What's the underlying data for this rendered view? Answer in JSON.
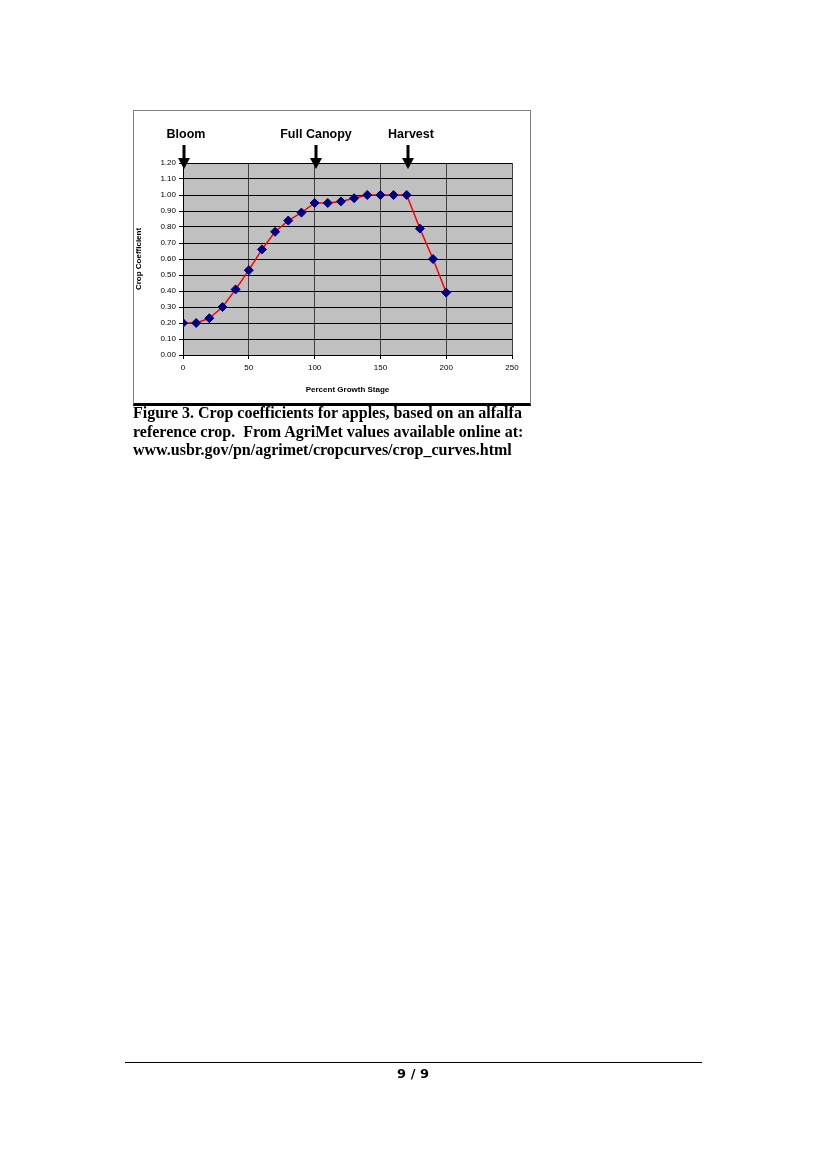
{
  "chart_data": {
    "type": "line",
    "x": [
      0,
      10,
      20,
      30,
      40,
      50,
      60,
      70,
      80,
      90,
      100,
      110,
      120,
      130,
      140,
      150,
      160,
      170,
      180,
      190,
      200
    ],
    "values": [
      0.2,
      0.2,
      0.23,
      0.3,
      0.41,
      0.53,
      0.66,
      0.77,
      0.84,
      0.89,
      0.95,
      0.95,
      0.96,
      0.98,
      1,
      1,
      1,
      1,
      0.79,
      0.6,
      0.39
    ],
    "color": "#ff0000",
    "marker": "diamond",
    "line_style": "solid",
    "xlabel": "Percent Growth Stage",
    "ylabel": "Crop Coefficient",
    "xlim": [
      0,
      250
    ],
    "xticks": [
      0,
      50,
      100,
      150,
      200,
      250
    ],
    "ylim": [
      0,
      1.2
    ],
    "yticks": [
      {
        "value": 0,
        "label": "0.00"
      },
      {
        "value": 0.1,
        "label": "0.10"
      },
      {
        "value": 0.2,
        "label": "0.20"
      },
      {
        "value": 0.3,
        "label": "0.30"
      },
      {
        "value": 0.4,
        "label": "0.40"
      },
      {
        "value": 0.5,
        "label": "0.50"
      },
      {
        "value": 0.6,
        "label": "0.60"
      },
      {
        "value": 0.7,
        "label": "0.70"
      },
      {
        "value": 0.8,
        "label": "0.80"
      },
      {
        "value": 0.9,
        "label": "0.90"
      },
      {
        "value": 1,
        "label": "1.00"
      },
      {
        "value": 1.1,
        "label": "1.10"
      },
      {
        "value": 1.2,
        "label": "1.20"
      }
    ],
    "grid": true,
    "annotations": [
      "Bloom",
      "Full Canopy",
      "Harvest",
      "Figure 3. Crop coefficients for apples, based on an alfalfa reference crop.  From AgriMet values available online at: www.usbr.gov/pn/agrimet/cropcurves/crop_curves.html",
      "9 / 9"
    ]
  }
}
